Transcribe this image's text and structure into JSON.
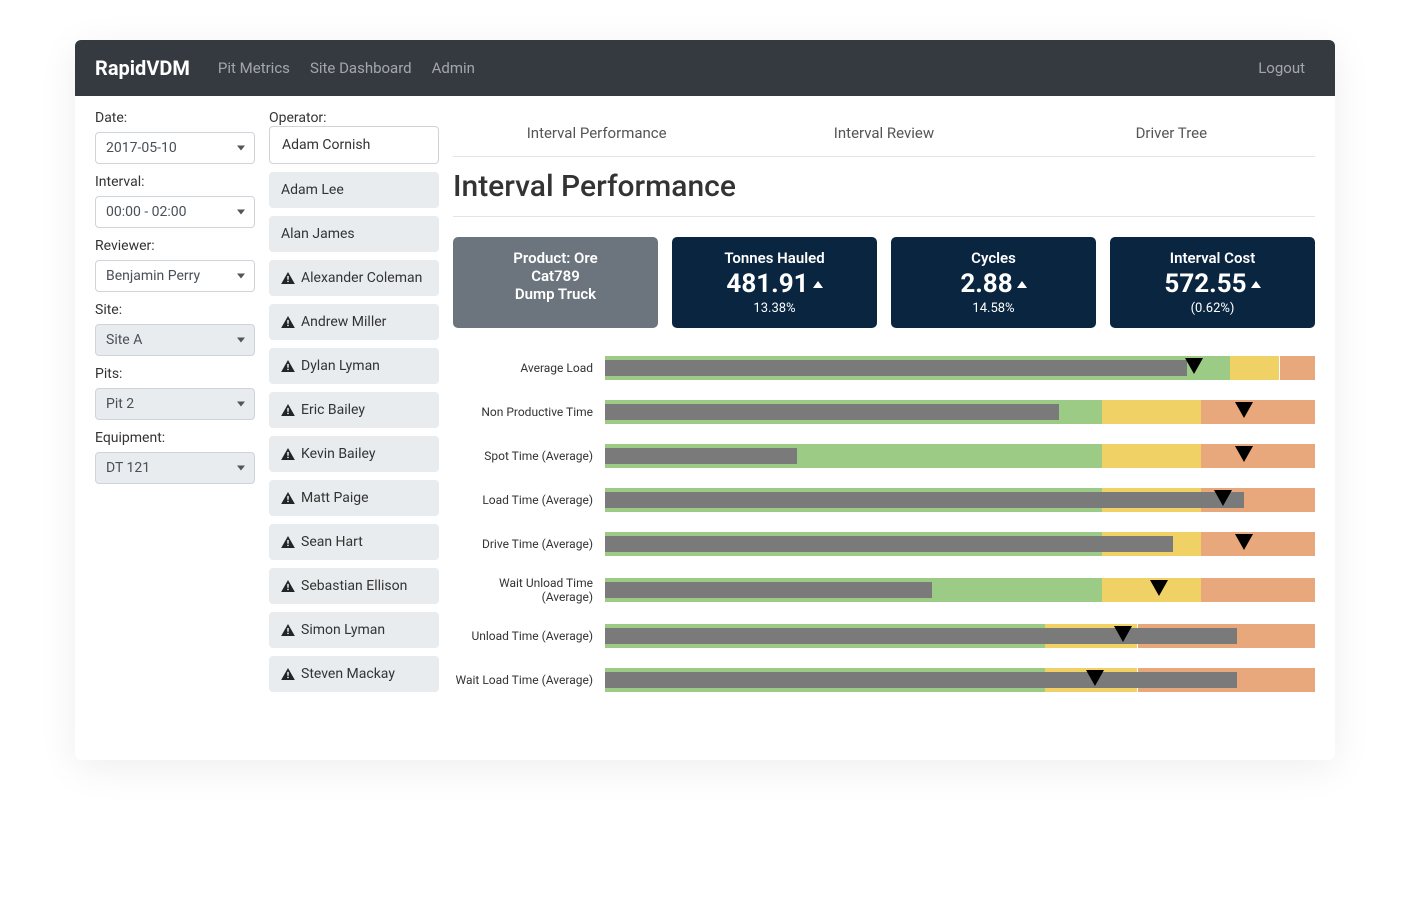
{
  "nav": {
    "brand": "RapidVDM",
    "links": [
      "Pit Metrics",
      "Site Dashboard",
      "Admin"
    ],
    "logout": "Logout"
  },
  "filters": {
    "date_label": "Date:",
    "date_value": "2017-05-10",
    "interval_label": "Interval:",
    "interval_value": "00:00 - 02:00",
    "reviewer_label": "Reviewer:",
    "reviewer_value": "Benjamin Perry",
    "site_label": "Site:",
    "site_value": "Site A",
    "pits_label": "Pits:",
    "pits_value": "Pit 2",
    "equipment_label": "Equipment:",
    "equipment_value": "DT 121"
  },
  "operator_label": "Operator:",
  "operators": [
    {
      "name": "Adam Cornish",
      "active": true,
      "warn": false
    },
    {
      "name": "Adam Lee",
      "active": false,
      "warn": false
    },
    {
      "name": "Alan James",
      "active": false,
      "warn": false
    },
    {
      "name": "Alexander Coleman",
      "active": false,
      "warn": true
    },
    {
      "name": "Andrew Miller",
      "active": false,
      "warn": true
    },
    {
      "name": "Dylan Lyman",
      "active": false,
      "warn": true
    },
    {
      "name": "Eric Bailey",
      "active": false,
      "warn": true
    },
    {
      "name": "Kevin Bailey",
      "active": false,
      "warn": true
    },
    {
      "name": "Matt Paige",
      "active": false,
      "warn": true
    },
    {
      "name": "Sean Hart",
      "active": false,
      "warn": true
    },
    {
      "name": "Sebastian Ellison",
      "active": false,
      "warn": true
    },
    {
      "name": "Simon Lyman",
      "active": false,
      "warn": true
    },
    {
      "name": "Steven Mackay",
      "active": false,
      "warn": true
    }
  ],
  "tabs": [
    "Interval Performance",
    "Interval Review",
    "Driver Tree"
  ],
  "page_title": "Interval Performance",
  "kpis": {
    "product": {
      "line1": "Product: Ore",
      "line2": "Cat789",
      "line3": "Dump Truck"
    },
    "tonnes": {
      "label": "Tonnes Hauled",
      "value": "481.91",
      "delta": "13.38%"
    },
    "cycles": {
      "label": "Cycles",
      "value": "2.88",
      "delta": "14.58%"
    },
    "cost": {
      "label": "Interval Cost",
      "value": "572.55",
      "delta": "(0.62%)"
    }
  },
  "bullet_colors": {
    "green": "#9ccb86",
    "yellow": "#f0d165",
    "orange": "#e8a87c",
    "actual": "#7a7a7a"
  },
  "metrics": [
    {
      "label": "Average Load",
      "green": [
        0,
        88
      ],
      "yellow": [
        88,
        95
      ],
      "orange": [
        95,
        100
      ],
      "actual": 82,
      "marker": 83
    },
    {
      "label": "Non Productive Time",
      "green": [
        0,
        70
      ],
      "yellow": [
        70,
        84
      ],
      "orange": [
        84,
        100
      ],
      "actual": 64,
      "marker": 90
    },
    {
      "label": "Spot Time (Average)",
      "green": [
        0,
        70
      ],
      "yellow": [
        70,
        84
      ],
      "orange": [
        84,
        100
      ],
      "actual": 27,
      "marker": 90
    },
    {
      "label": "Load Time (Average)",
      "green": [
        0,
        70
      ],
      "yellow": [
        70,
        84
      ],
      "orange": [
        84,
        100
      ],
      "actual": 90,
      "marker": 87
    },
    {
      "label": "Drive Time (Average)",
      "green": [
        0,
        70
      ],
      "yellow": [
        70,
        84
      ],
      "orange": [
        84,
        100
      ],
      "actual": 80,
      "marker": 90
    },
    {
      "label": "Wait Unload Time (Average)",
      "green": [
        0,
        70
      ],
      "yellow": [
        70,
        84
      ],
      "orange": [
        84,
        100
      ],
      "actual": 46,
      "marker": 78
    },
    {
      "label": "Unload Time (Average)",
      "green": [
        0,
        62
      ],
      "yellow": [
        62,
        75
      ],
      "orange": [
        75,
        100
      ],
      "actual": 89,
      "marker": 73
    },
    {
      "label": "Wait Load Time (Average)",
      "green": [
        0,
        62
      ],
      "yellow": [
        62,
        75
      ],
      "orange": [
        75,
        100
      ],
      "actual": 89,
      "marker": 69
    }
  ]
}
